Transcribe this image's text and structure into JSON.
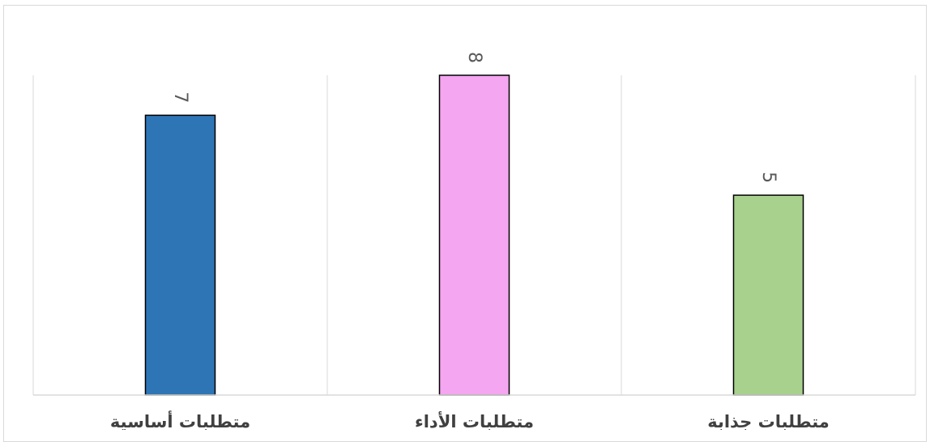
{
  "chart_data": {
    "type": "bar",
    "categories": [
      "متطلبات أساسية",
      "متطلبات الأداء",
      "متطلبات جذابة"
    ],
    "values": [
      7,
      8,
      5
    ],
    "colors": [
      "#2e75b6",
      "#f5a6f0",
      "#a9d18e"
    ],
    "data_labels": [
      "7",
      "8",
      "5"
    ],
    "data_label_rotation": "90deg",
    "ylim": [
      0,
      8
    ],
    "grid": "vertical separators between categories",
    "legend": "none",
    "title": "",
    "xlabel": "",
    "ylabel": ""
  }
}
